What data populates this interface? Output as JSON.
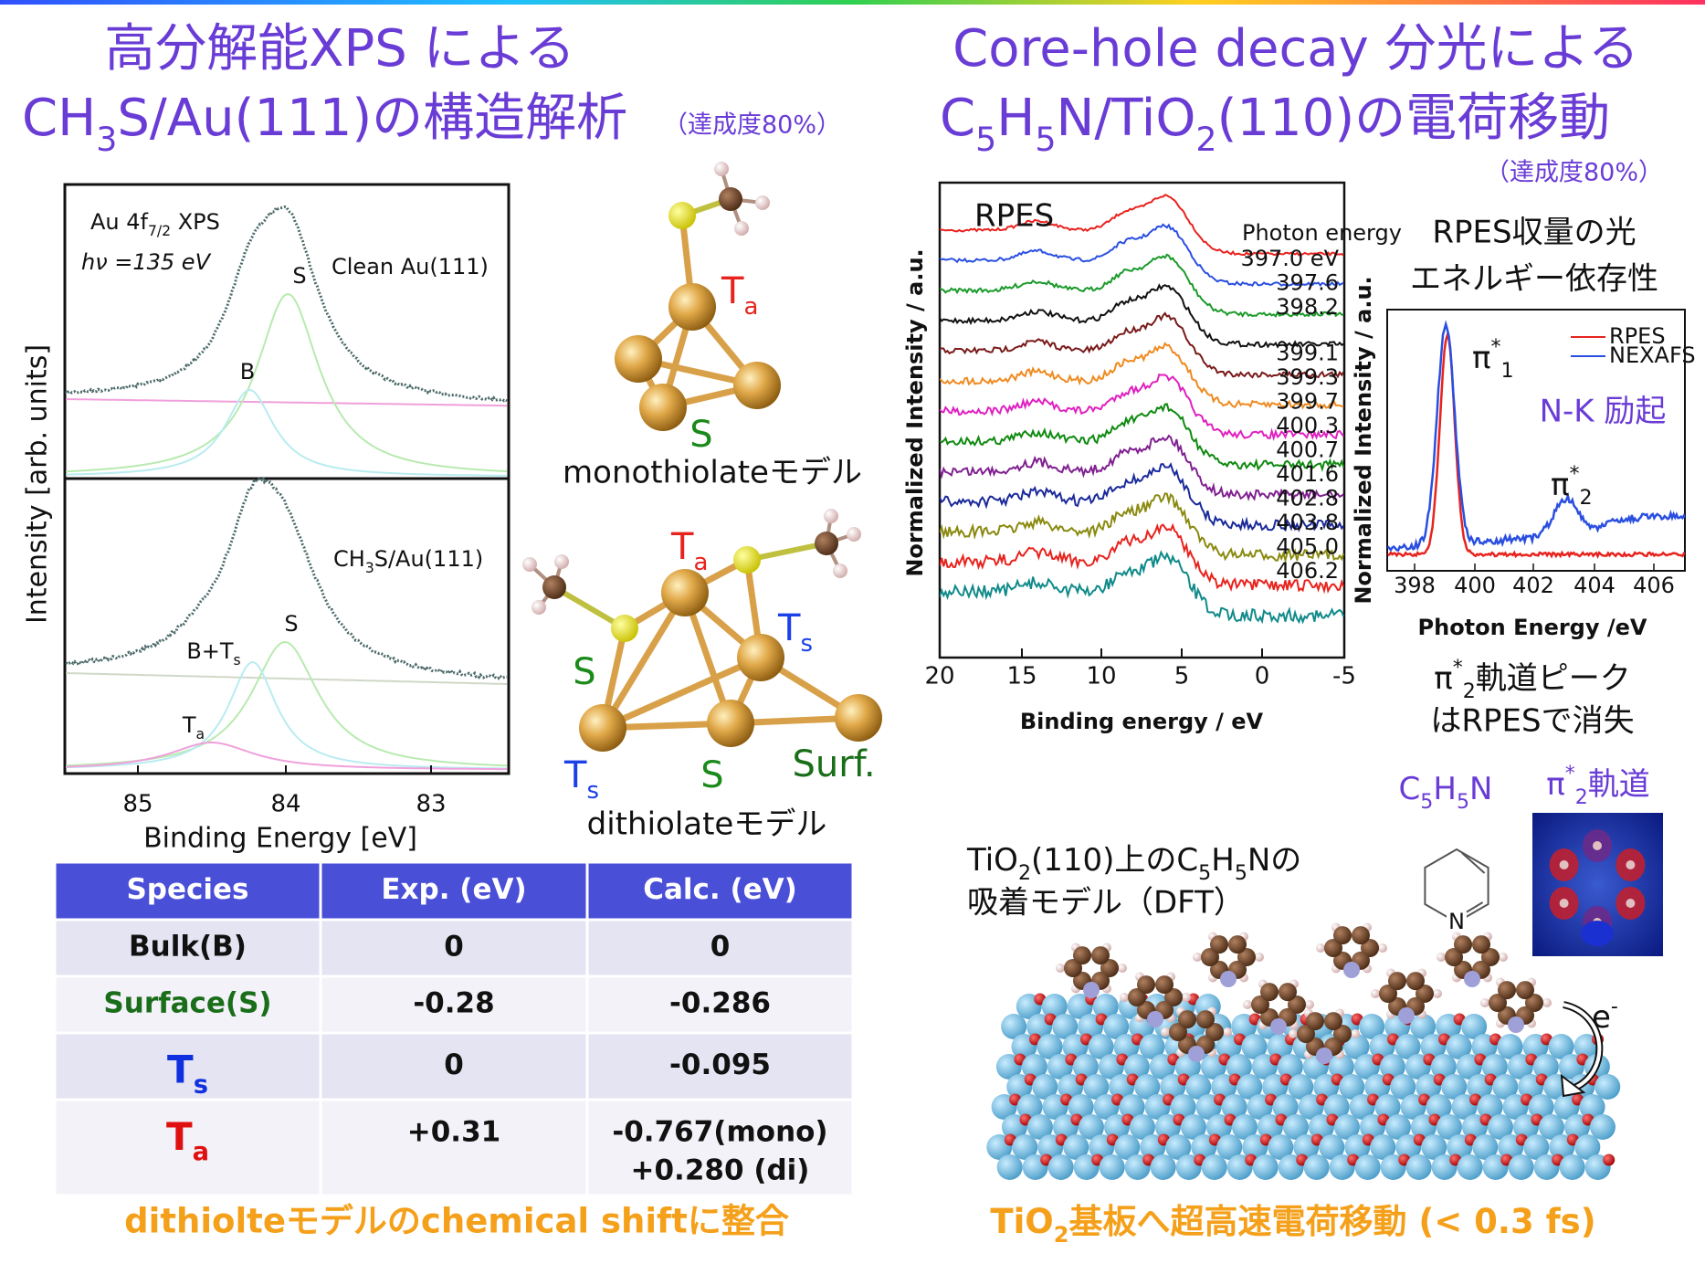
{
  "header": {
    "left_title": {
      "line1": "高分解能XPS による",
      "line2": [
        "CH",
        "3",
        "S/Au(111)の構造解析"
      ],
      "progress": "（達成度80%）"
    },
    "right_title": {
      "line1": "Core-hole decay 分光による",
      "line2": [
        "C",
        "5",
        "H",
        "5",
        "N/TiO",
        "2",
        "(110)の電荷移動"
      ],
      "progress": "（達成度80%）"
    }
  },
  "xps_figure": {
    "title": [
      "Au 4f",
      "7/2",
      " XPS"
    ],
    "energy": [
      "hν",
      " =135 eV"
    ],
    "clean_label": "Clean Au(111)",
    "peak_s_top": "S",
    "peak_b": "B",
    "sample_label": [
      "CH",
      "3",
      "S/Au(111)"
    ],
    "peak_s_bottom": "S",
    "peak_bts": [
      "B+T",
      "s"
    ],
    "peak_ta": [
      "T",
      "a"
    ],
    "x_ticks": [
      "85",
      "84",
      "83"
    ],
    "x_label": "Binding  Energy  [eV]",
    "y_label": "Intensity  [arb. units]"
  },
  "models": {
    "mono": {
      "ta": [
        "T",
        "a"
      ],
      "s": "S",
      "caption": "monothiolateモデル"
    },
    "di": {
      "ta": [
        "T",
        "a"
      ],
      "ts_right": [
        "T",
        "s"
      ],
      "s_left": "S",
      "ts_left": [
        "T",
        "s"
      ],
      "s_bottom": "S",
      "surf": "Surf.",
      "caption": "dithiolateモデル"
    }
  },
  "table": {
    "header": [
      "Species",
      "Exp. (eV)",
      "Calc. (eV)"
    ],
    "rows": [
      [
        "Bulk(B)",
        "0",
        "0"
      ],
      [
        "Surface(S)",
        "-0.28",
        "-0.286"
      ],
      [
        [
          "T",
          "s"
        ],
        "0",
        "-0.095"
      ],
      [
        [
          "T",
          "a"
        ],
        "+0.31",
        [
          "-0.767(mono)",
          "+0.280 (di)"
        ]
      ]
    ]
  },
  "footer_left": "dithiolteモデルのchemical shiftに整合",
  "footer_right": [
    "TiO",
    "2",
    "基板へ超高速電荷移動 (< 0.3 fs)"
  ],
  "rpes": {
    "label": "RPES",
    "legend_title": "Photon energy",
    "photon_energies": [
      {
        "label": "397.0 eV",
        "color": "#e8231e"
      },
      {
        "label": "397.6",
        "color": "#2a4fe0"
      },
      {
        "label": "398.2",
        "color": "#1a9a2a"
      },
      {
        "label": "399.1",
        "color": "#111111"
      },
      {
        "label": "399.3",
        "color": "#7a1a1a"
      },
      {
        "label": "399.7",
        "color": "#f08a20"
      },
      {
        "label": "400.3",
        "color": "#e020c0"
      },
      {
        "label": "400.7",
        "color": "#108a10"
      },
      {
        "label": "401.6",
        "color": "#802090"
      },
      {
        "label": "402.8",
        "color": "#1a2a9a"
      },
      {
        "label": "403.8",
        "color": "#8a8a10"
      },
      {
        "label": "405.0",
        "color": "#e8231e"
      },
      {
        "label": "406.2",
        "color": "#108a8a"
      }
    ],
    "x_ticks": [
      "20",
      "15",
      "10",
      "5",
      "0",
      "-5"
    ],
    "x_label": "Binding energy / eV",
    "y_label": "Normalized Intensity / a.u."
  },
  "inset": {
    "title_line1": "RPES収量の光",
    "title_line2": "エネルギー依存性",
    "legend": [
      {
        "name": "RPES",
        "color": "#e8231e"
      },
      {
        "name": "NEXAFS",
        "color": "#2a4fe0"
      }
    ],
    "pi1": [
      "π",
      "*",
      "1"
    ],
    "excitation": "N-K 励起",
    "pi2": [
      "π",
      "*",
      "2"
    ],
    "x_ticks": [
      "398",
      "400",
      "402",
      "404",
      "406"
    ],
    "x_label": "Photon Energy /eV",
    "y_label": "Normalized Intensity / a.u.",
    "note_line1": [
      "π",
      "*",
      "2",
      "軌道ピーク"
    ],
    "note_line2": "はRPESで消失"
  },
  "adsorption": {
    "molecule": [
      "C",
      "5",
      "H",
      "5",
      "N"
    ],
    "orbital": [
      "π",
      "*",
      "2",
      "軌道"
    ],
    "pyridine_atom": "N",
    "model_line1": [
      "TiO",
      "2",
      "(110)上のC",
      "5",
      "H",
      "5",
      "Nの"
    ],
    "model_line2": "吸着モデル（DFT）",
    "electron": [
      "e",
      "-"
    ]
  }
}
